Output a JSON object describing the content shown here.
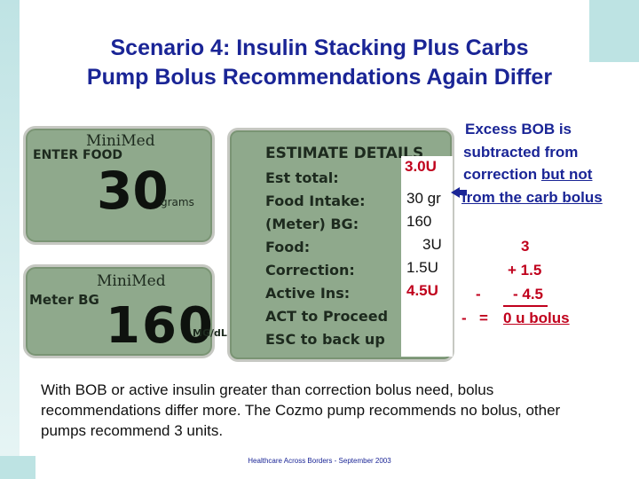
{
  "title": {
    "line1": "Scenario 4: Insulin Stacking Plus Carbs",
    "line2": "Pump Bolus Recommendations Again Differ"
  },
  "screen_food": {
    "brand": "MiniMed",
    "label": "ENTER FOOD",
    "value": "30",
    "unit": "grams"
  },
  "screen_bg": {
    "brand": "MiniMed",
    "label": "Meter BG",
    "value": "160",
    "unit": "MG/dL"
  },
  "estimate": {
    "header": "ESTIMATE DETAILS",
    "rows": [
      "Est total:",
      "Food Intake:",
      "(Meter) BG:",
      "Food:",
      "Correction:",
      "Active Ins:",
      "ACT to Proceed",
      "ESC to back up"
    ],
    "values": [
      "3.0U",
      "30 gr",
      "160",
      "3U",
      "1.5U",
      "4.5U"
    ]
  },
  "note": {
    "line1": "Excess BOB is",
    "line2": "subtracted from",
    "line3a": "correction ",
    "line3b": "but not",
    "line4": "from the carb bolus"
  },
  "calc": {
    "l1": "3",
    "l2": "+ 1.5",
    "l3": "- 4.5",
    "l4a": "=",
    "l4b": "0 u bolus",
    "m1": "-",
    "m2": "-"
  },
  "body_text": "With BOB or active insulin greater than correction bolus need, bolus recommendations differ more. The Cozmo pump recommends no bolus, other pumps recommend 3 units.",
  "footer": "Healthcare Across Borders  -  September 2003",
  "colors": {
    "title": "#1a2596",
    "accent": "#c0001c",
    "lcd": "#8fa98c"
  }
}
